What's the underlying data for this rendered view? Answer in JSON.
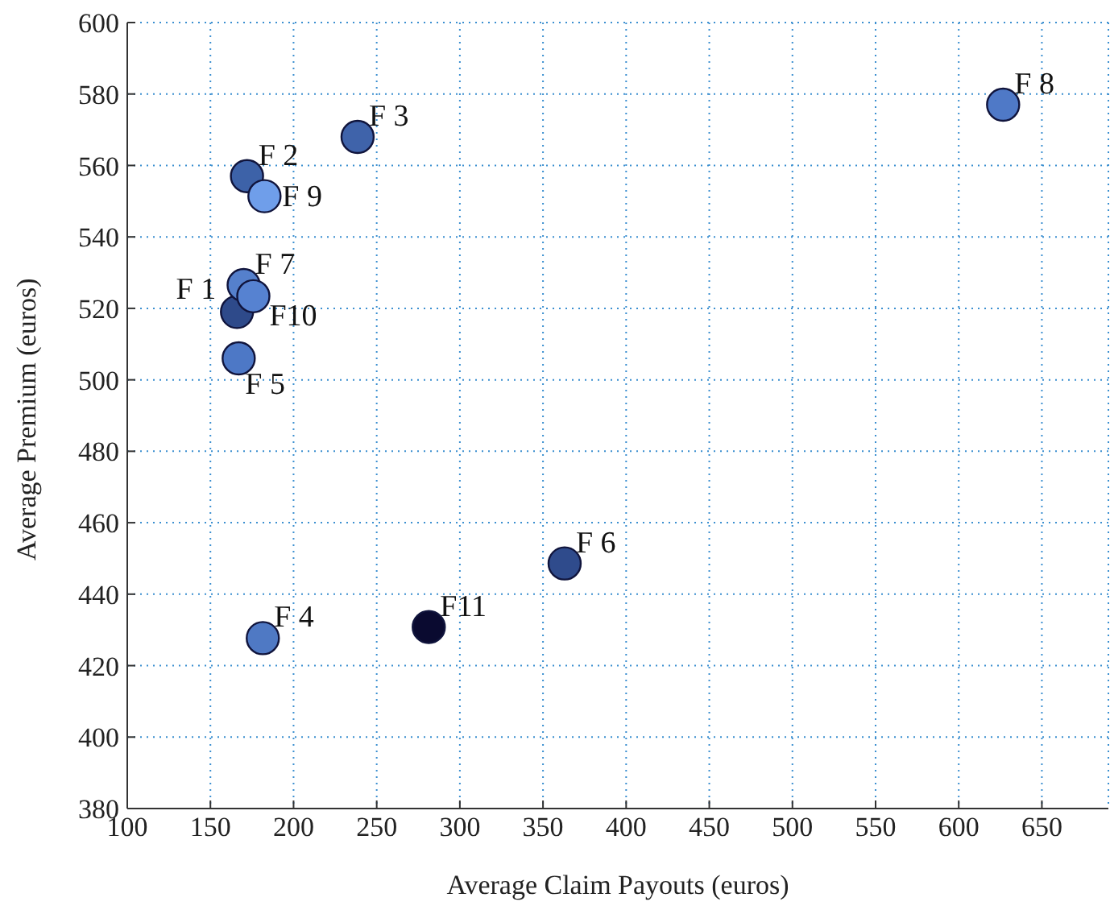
{
  "chart_data": {
    "type": "scatter",
    "xlabel": "Average Claim Payouts (euros)",
    "ylabel": "Average Premium (euros)",
    "xlim": [
      100,
      690
    ],
    "xticks": [
      100,
      150,
      200,
      250,
      300,
      350,
      400,
      450,
      500,
      550,
      600,
      650
    ],
    "ylim": [
      380,
      600
    ],
    "yticks": [
      380,
      400,
      420,
      440,
      460,
      480,
      500,
      520,
      540,
      560,
      580,
      600
    ],
    "grid": true,
    "legend": false,
    "marker": "circle",
    "series": [
      {
        "name": "F 1",
        "color": "#2e4a8a",
        "x": [
          166
        ],
        "values": [
          519
        ]
      },
      {
        "name": "F 2",
        "color": "#3d62a8",
        "x": [
          172
        ],
        "values": [
          557
        ]
      },
      {
        "name": "F 3",
        "color": "#3f63aa",
        "x": [
          238.5
        ],
        "values": [
          568
        ]
      },
      {
        "name": "F 4",
        "color": "#4f79c4",
        "x": [
          181.5
        ],
        "values": [
          427.7
        ]
      },
      {
        "name": "F 5",
        "color": "#4d78c6",
        "x": [
          167
        ],
        "values": [
          506
        ]
      },
      {
        "name": "F 6",
        "color": "#2f4b8c",
        "x": [
          363
        ],
        "values": [
          448.6
        ]
      },
      {
        "name": "F 7",
        "color": "#5580cc",
        "x": [
          170
        ],
        "values": [
          526.5
        ]
      },
      {
        "name": "F 8",
        "color": "#4f79c7",
        "x": [
          626.7
        ],
        "values": [
          577
        ]
      },
      {
        "name": "F 9",
        "color": "#6f9eea",
        "x": [
          182.5
        ],
        "values": [
          551.4
        ]
      },
      {
        "name": "F10",
        "color": "#5682d1",
        "x": [
          175.8
        ],
        "values": [
          523.4
        ]
      },
      {
        "name": "F11",
        "color": "#0a0a30",
        "x": [
          281.3
        ],
        "values": [
          430.8
        ]
      }
    ]
  }
}
